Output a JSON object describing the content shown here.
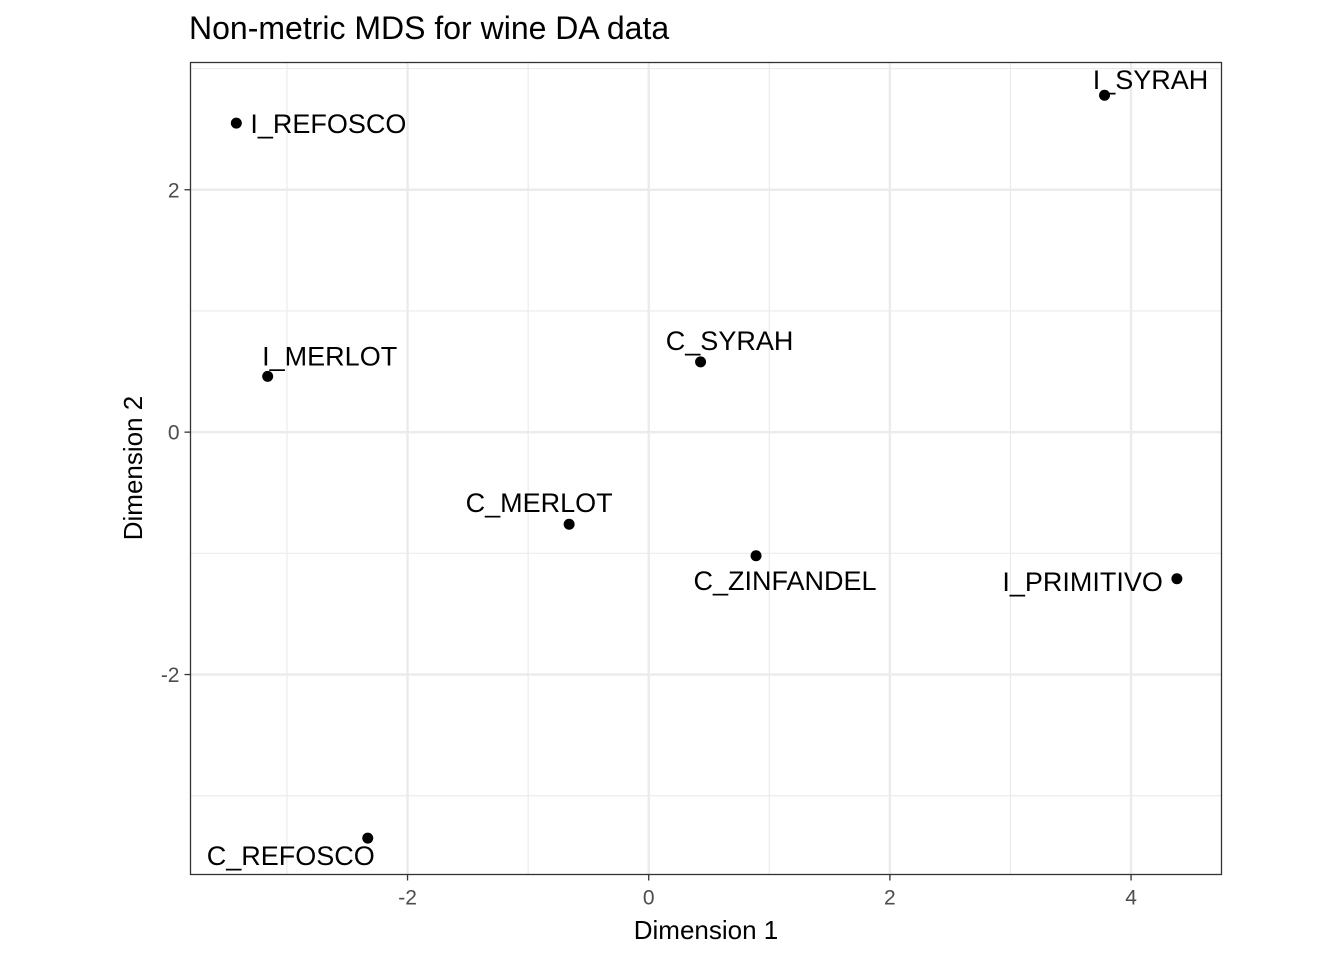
{
  "chart_data": {
    "type": "scatter",
    "title": "Non-metric MDS for wine DA data",
    "xlabel": "Dimension 1",
    "ylabel": "Dimension 2",
    "xlim": [
      -3.8,
      4.75
    ],
    "ylim": [
      -3.65,
      3.05
    ],
    "x_ticks": [
      -2,
      0,
      2,
      4
    ],
    "y_ticks": [
      -2,
      0,
      2
    ],
    "x_tick_labels": [
      "-2",
      "0",
      "2",
      "4"
    ],
    "y_tick_labels": [
      "-2",
      "0",
      "2"
    ],
    "grid": true,
    "legend": "none",
    "points": [
      {
        "label": "I_REFOSCO",
        "x": -3.42,
        "y": 2.55
      },
      {
        "label": "I_SYRAH",
        "x": 3.78,
        "y": 2.78
      },
      {
        "label": "I_MERLOT",
        "x": -3.16,
        "y": 0.46
      },
      {
        "label": "C_SYRAH",
        "x": 0.43,
        "y": 0.58
      },
      {
        "label": "C_MERLOT",
        "x": -0.66,
        "y": -0.76
      },
      {
        "label": "C_ZINFANDEL",
        "x": 0.89,
        "y": -1.02
      },
      {
        "label": "I_PRIMITIVO",
        "x": 4.38,
        "y": -1.21
      },
      {
        "label": "C_REFOSCO",
        "x": -2.33,
        "y": -3.35
      }
    ]
  }
}
